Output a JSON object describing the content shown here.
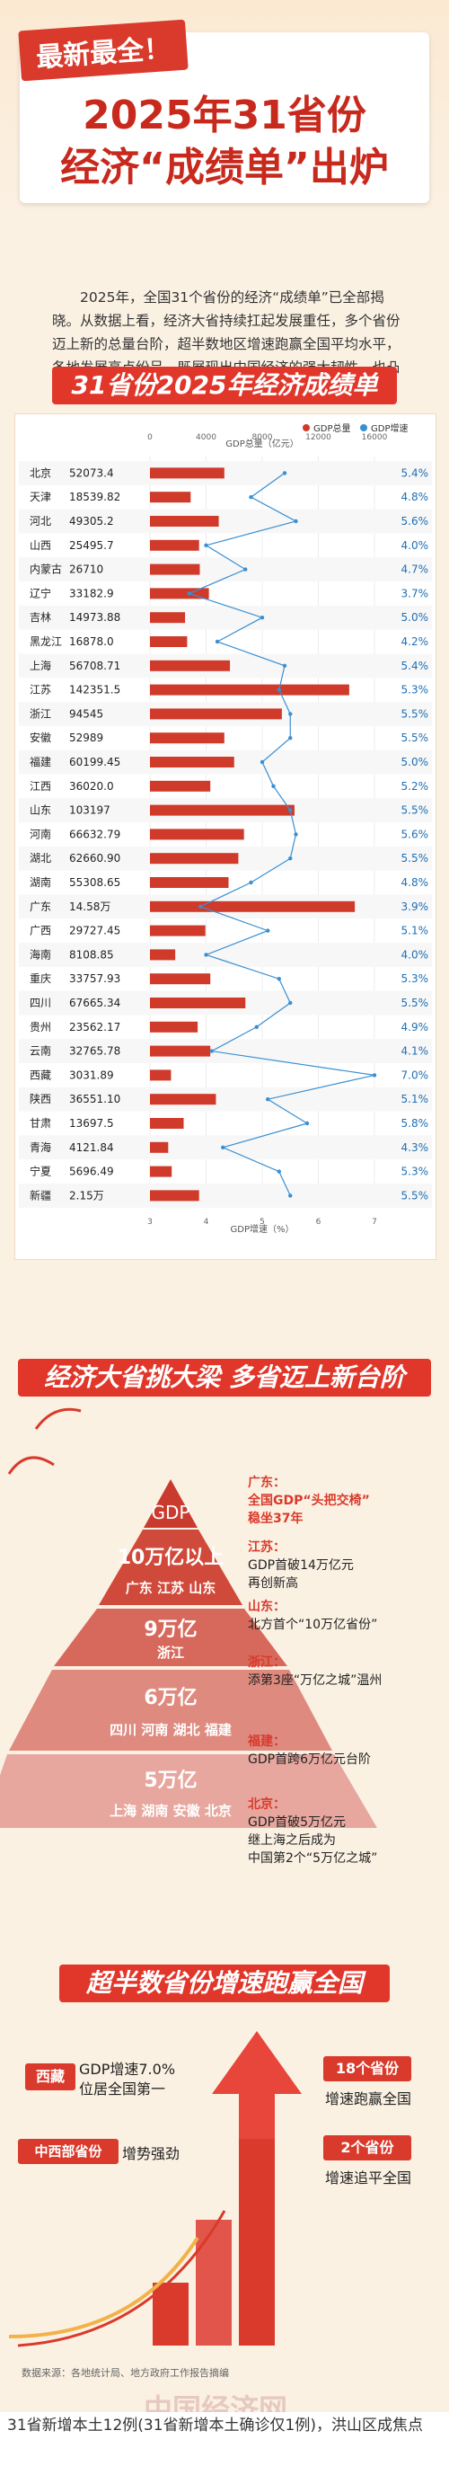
{
  "header": {
    "tag": "最新最全！",
    "title_line1": "2025年31省份",
    "title_line2": "经济“成绩单”出炉"
  },
  "intro": "2025年，全国31个省份的经济“成绩单”已全部揭晓。从数据上看，经济大省持续扛起发展重任，多个省份迈上新的总量台阶，超半数地区增速跑赢全国平均水平，各地发展亮点纷呈，既展现出中国经济的强大韧性，也凸显出区域协调发展的蓬勃活力。",
  "chart_section": {
    "banner": "31省份2025年经济成绩单"
  },
  "chart_data": {
    "type": "bar",
    "title": "31省份2025年经济成绩单",
    "legend": [
      "GDP总量",
      "GDP增速"
    ],
    "legend_position": "top-right",
    "x_top_label": "GDP总量（亿元）",
    "x_bottom_label": "GDP增速（%）",
    "gdp_ticks": [
      "0",
      "4000",
      "8000",
      "12000",
      "16000"
    ],
    "growth_ticks": [
      "3",
      "4",
      "5",
      "6",
      "7"
    ],
    "gdp_xlim": [
      0,
      16000
    ],
    "growth_xlim": [
      3,
      7
    ],
    "colors": {
      "gdp": "#cf3a2a",
      "growth": "#3a8fd0"
    },
    "categories": [
      "北京",
      "天津",
      "河北",
      "山西",
      "内蒙古",
      "辽宁",
      "吉林",
      "黑龙江",
      "上海",
      "江苏",
      "浙江",
      "安徽",
      "福建",
      "江西",
      "山东",
      "河南",
      "湖北",
      "湖南",
      "广东",
      "广西",
      "海南",
      "重庆",
      "四川",
      "贵州",
      "云南",
      "西藏",
      "陕西",
      "甘肃",
      "青海",
      "宁夏",
      "新疆"
    ],
    "gdp_labels": [
      "52073.4",
      "18539.82",
      "49305.2",
      "25495.7",
      "26710",
      "33182.9",
      "14973.88",
      "16878.0",
      "56708.71",
      "142351.5",
      "94545",
      "52989",
      "60199.45",
      "36020.0",
      "103197",
      "66632.79",
      "62660.90",
      "55308.65",
      "14.58万",
      "29727.45",
      "8108.85",
      "33757.93",
      "67665.34",
      "23562.17",
      "32765.78",
      "3031.89",
      "36551.10",
      "13697.5",
      "4121.84",
      "5696.49",
      "2.15万"
    ],
    "series": [
      {
        "name": "GDP总量",
        "values": [
          5300,
          2900,
          4900,
          3500,
          3550,
          4200,
          2500,
          2650,
          5700,
          14200,
          9400,
          5300,
          6000,
          4300,
          10300,
          6700,
          6300,
          5600,
          14600,
          3950,
          1800,
          4300,
          6800,
          3400,
          4300,
          1500,
          4700,
          2400,
          1300,
          1550,
          3500
        ]
      },
      {
        "name": "GDP增速",
        "values": [
          5.4,
          4.8,
          5.6,
          4.0,
          4.7,
          3.7,
          5.0,
          4.2,
          5.4,
          5.3,
          5.5,
          5.5,
          5.0,
          5.2,
          5.5,
          5.6,
          5.5,
          4.8,
          3.9,
          5.1,
          4.0,
          5.3,
          5.5,
          4.9,
          4.1,
          7.0,
          5.1,
          5.8,
          4.3,
          5.3,
          5.5
        ]
      }
    ],
    "growth_labels": [
      "5.4%",
      "4.8%",
      "5.6%",
      "4.0%",
      "4.7%",
      "3.7%",
      "5.0%",
      "4.2%",
      "5.4%",
      "5.3%",
      "5.5%",
      "5.5%",
      "5.0%",
      "5.2%",
      "5.5%",
      "5.6%",
      "5.5%",
      "4.8%",
      "3.9%",
      "5.1%",
      "4.0%",
      "5.3%",
      "5.5%",
      "4.9%",
      "4.1%",
      "7.0%",
      "5.1%",
      "5.8%",
      "4.3%",
      "5.3%",
      "5.5%"
    ]
  },
  "pyramid_section": {
    "banner": "经济大省挑大梁 多省迈上新台阶",
    "tiers": [
      {
        "title": "GDP",
        "provinces": ""
      },
      {
        "title": "10万亿以上",
        "provinces": "广东 江苏 山东"
      },
      {
        "title": "9万亿",
        "provinces": "浙江"
      },
      {
        "title": "6万亿",
        "provinces": "四川 河南 湖北 福建"
      },
      {
        "title": "5万亿",
        "provinces": "上海 湖南 安徽 北京"
      }
    ],
    "notes": [
      {
        "head": "广东：",
        "lines": [
          "全国GDP“头把交椅”",
          "稳坐37年"
        ]
      },
      {
        "head": "江苏：",
        "lines": [
          "GDP首破14万亿元",
          "再创新高"
        ]
      },
      {
        "head": "山东：",
        "lines": [
          "北方首个“10万亿省份”"
        ]
      },
      {
        "head": "浙江：",
        "lines": [
          "添第3座“万亿之城”温州"
        ]
      },
      {
        "head": "福建：",
        "lines": [
          "GDP首跨6万亿元台阶"
        ]
      },
      {
        "head": "北京：",
        "lines": [
          "GDP首破5万亿元",
          "继上海之后成为",
          "中国第2个“5万亿之城”"
        ]
      }
    ]
  },
  "growth_section": {
    "banner": "超半数省份增速跑赢全国",
    "tibet_tag": "西藏",
    "tibet_text1": "GDP增速7.0%",
    "tibet_text2": "位居全国第一",
    "midwest_tag": "中西部省份",
    "midwest_text": "增势强劲",
    "box1_title": "18个省份",
    "box1_text": "增速跑赢全国",
    "box2_title": "2个省份",
    "box2_text": "增速追平全国"
  },
  "footer": {
    "source": "数据来源：各地统计局、地方政府工作报告摘编",
    "logo": "中国经济网"
  },
  "caption": "31省新增本土12例(31省新增本土确诊仅1例)，洪山区成焦点"
}
